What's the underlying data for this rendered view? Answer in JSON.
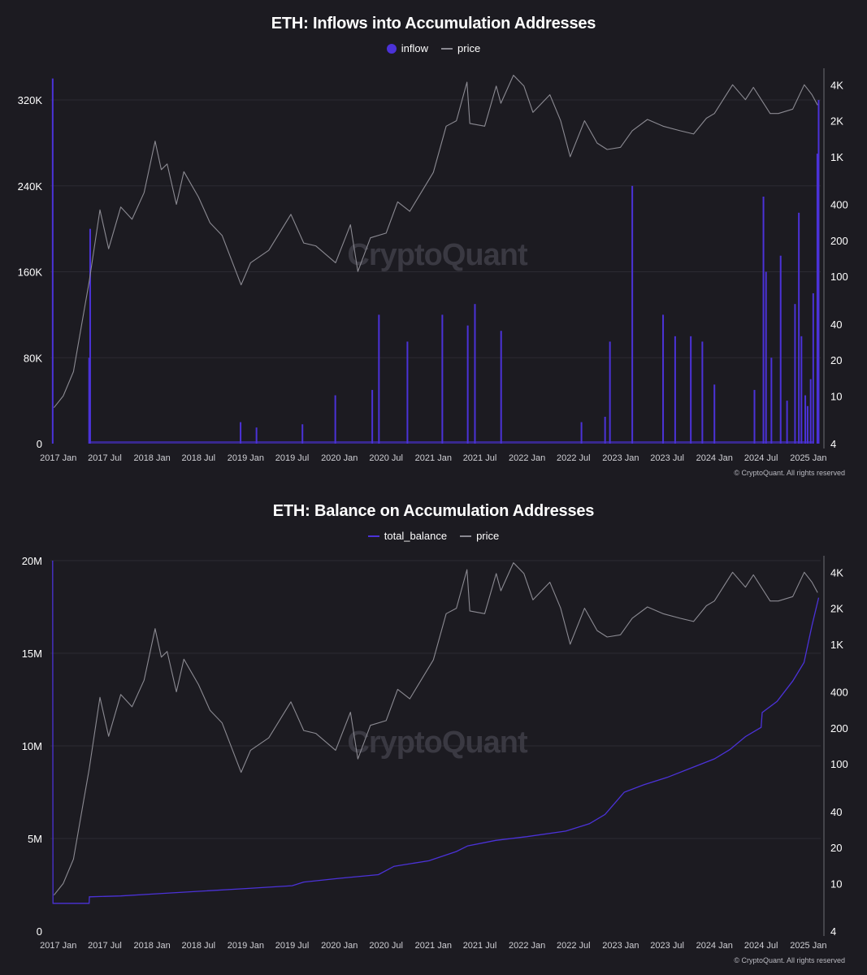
{
  "colors": {
    "inflow": "#4b32d8",
    "balance": "#4b32d8",
    "price": "#8b8a92",
    "grid": "#2c2b33"
  },
  "watermark": "CryptoQuant",
  "copyright": "© CryptoQuant. All rights reserved",
  "chart_data": [
    {
      "type": "bar",
      "title": "ETH: Inflows into Accumulation Addresses",
      "legend": [
        "inflow",
        "price"
      ],
      "x_ticks": [
        "2017 Jan",
        "2017 Jul",
        "2018 Jan",
        "2018 Jul",
        "2019 Jan",
        "2019 Jul",
        "2020 Jan",
        "2020 Jul",
        "2021 Jan",
        "2021 Jul",
        "2022 Jan",
        "2022 Jul",
        "2023 Jan",
        "2023 Jul",
        "2024 Jan",
        "2024 Jul",
        "2025 Jan"
      ],
      "y_left_ticks": [
        "0",
        "80K",
        "160K",
        "240K",
        "320K"
      ],
      "y_left_range": [
        0,
        345000
      ],
      "y_right_ticks": [
        "4",
        "10",
        "20",
        "40",
        "100",
        "200",
        "400",
        "1K",
        "2K",
        "4K"
      ],
      "y_right_scale": "log",
      "y_right_range": [
        4,
        5000
      ],
      "series": [
        {
          "name": "inflow",
          "x": [
            "2016-12-10",
            "2017-05-01",
            "2017-05-05",
            "2018-12-12",
            "2019-02-12",
            "2019-08-10",
            "2019-12-16",
            "2020-05-08",
            "2020-06-03",
            "2020-09-22",
            "2021-02-05",
            "2021-05-15",
            "2021-06-12",
            "2021-09-22",
            "2022-08-01",
            "2022-11-01",
            "2022-11-20",
            "2023-02-15",
            "2023-06-15",
            "2023-08-01",
            "2023-10-01",
            "2023-11-15",
            "2024-01-01",
            "2024-06-05",
            "2024-07-10",
            "2024-07-20",
            "2024-08-10",
            "2024-09-15",
            "2024-10-10",
            "2024-11-10",
            "2024-11-25",
            "2024-12-05",
            "2024-12-20",
            "2024-12-29",
            "2025-01-10",
            "2025-01-20",
            "2025-02-05",
            "2025-02-10"
          ],
          "values": [
            340000,
            80000,
            200000,
            20000,
            15000,
            18000,
            45000,
            50000,
            120000,
            95000,
            120000,
            110000,
            130000,
            105000,
            20000,
            25000,
            95000,
            240000,
            120000,
            100000,
            100000,
            95000,
            55000,
            50000,
            230000,
            160000,
            80000,
            175000,
            40000,
            130000,
            215000,
            100000,
            45000,
            35000,
            60000,
            140000,
            270000,
            320000
          ]
        },
        {
          "name": "price",
          "x": [
            "2016-12-15",
            "2017-01-20",
            "2017-03-01",
            "2017-04-10",
            "2017-05-01",
            "2017-06-12",
            "2017-07-16",
            "2017-09-01",
            "2017-10-15",
            "2017-12-01",
            "2018-01-13",
            "2018-02-06",
            "2018-03-01",
            "2018-04-06",
            "2018-05-05",
            "2018-07-01",
            "2018-08-15",
            "2018-10-01",
            "2018-12-14",
            "2019-01-20",
            "2019-04-01",
            "2019-06-26",
            "2019-08-15",
            "2019-10-01",
            "2019-12-17",
            "2020-02-13",
            "2020-03-13",
            "2020-05-01",
            "2020-07-01",
            "2020-08-15",
            "2020-10-01",
            "2021-01-01",
            "2021-02-20",
            "2021-04-01",
            "2021-05-12",
            "2021-05-23",
            "2021-07-20",
            "2021-09-03",
            "2021-09-21",
            "2021-11-09",
            "2021-12-20",
            "2022-01-24",
            "2022-03-31",
            "2022-05-12",
            "2022-06-18",
            "2022-08-13",
            "2022-10-01",
            "2022-11-09",
            "2022-12-31",
            "2023-02-15",
            "2023-04-15",
            "2023-06-15",
            "2023-08-20",
            "2023-10-12",
            "2023-12-01",
            "2024-01-01",
            "2024-03-12",
            "2024-05-01",
            "2024-06-01",
            "2024-08-05",
            "2024-09-06",
            "2024-11-01",
            "2024-12-16",
            "2025-01-15",
            "2025-02-06"
          ],
          "values": [
            8,
            10,
            16,
            50,
            90,
            360,
            170,
            380,
            300,
            500,
            1350,
            780,
            870,
            400,
            750,
            460,
            280,
            220,
            85,
            130,
            165,
            330,
            190,
            180,
            130,
            270,
            110,
            210,
            230,
            420,
            350,
            740,
            1800,
            2000,
            4200,
            1900,
            1800,
            3900,
            2800,
            4800,
            3900,
            2350,
            3300,
            2000,
            1000,
            2000,
            1300,
            1150,
            1200,
            1650,
            2050,
            1800,
            1650,
            1550,
            2100,
            2300,
            4000,
            3000,
            3800,
            2300,
            2300,
            2500,
            4000,
            3300,
            2700
          ]
        }
      ]
    },
    {
      "type": "line",
      "title": "ETH: Balance on Accumulation Addresses",
      "legend": [
        "total_balance",
        "price"
      ],
      "x_ticks": [
        "2017 Jan",
        "2017 Jul",
        "2018 Jan",
        "2018 Jul",
        "2019 Jan",
        "2019 Jul",
        "2020 Jan",
        "2020 Jul",
        "2021 Jan",
        "2021 Jul",
        "2022 Jan",
        "2022 Jul",
        "2023 Jan",
        "2023 Jul",
        "2024 Jan",
        "2024 Jul",
        "2025 Jan"
      ],
      "y_left_ticks": [
        "0",
        "5M",
        "10M",
        "15M",
        "20M"
      ],
      "y_left_range": [
        0,
        20000000
      ],
      "y_right_ticks": [
        "4",
        "10",
        "20",
        "40",
        "100",
        "200",
        "400",
        "1K",
        "2K",
        "4K"
      ],
      "y_right_scale": "log",
      "y_right_range": [
        4,
        5000
      ],
      "series": [
        {
          "name": "total_balance",
          "x": [
            "2016-12-10",
            "2016-12-11",
            "2017-01-01",
            "2017-05-01",
            "2017-05-02",
            "2017-09-01",
            "2018-01-01",
            "2018-07-01",
            "2019-01-01",
            "2019-07-01",
            "2019-08-15",
            "2020-01-01",
            "2020-06-01",
            "2020-08-01",
            "2020-12-15",
            "2021-04-01",
            "2021-05-15",
            "2021-09-01",
            "2022-01-01",
            "2022-06-01",
            "2022-09-01",
            "2022-11-01",
            "2023-01-15",
            "2023-04-01",
            "2023-07-01",
            "2023-10-01",
            "2024-01-01",
            "2024-03-01",
            "2024-05-01",
            "2024-07-01",
            "2024-07-05",
            "2024-09-01",
            "2024-11-01",
            "2024-12-15",
            "2025-01-15",
            "2025-02-10"
          ],
          "values": [
            20000000,
            1500000,
            1500000,
            1500000,
            1850000,
            1900000,
            2000000,
            2150000,
            2300000,
            2450000,
            2650000,
            2850000,
            3050000,
            3500000,
            3800000,
            4300000,
            4600000,
            4900000,
            5100000,
            5400000,
            5800000,
            6300000,
            7500000,
            7900000,
            8300000,
            8800000,
            9300000,
            9800000,
            10500000,
            11000000,
            11800000,
            12400000,
            13500000,
            14500000,
            16500000,
            18000000
          ]
        },
        {
          "name": "price",
          "x": [
            "2016-12-15",
            "2017-01-20",
            "2017-03-01",
            "2017-04-10",
            "2017-05-01",
            "2017-06-12",
            "2017-07-16",
            "2017-09-01",
            "2017-10-15",
            "2017-12-01",
            "2018-01-13",
            "2018-02-06",
            "2018-03-01",
            "2018-04-06",
            "2018-05-05",
            "2018-07-01",
            "2018-08-15",
            "2018-10-01",
            "2018-12-14",
            "2019-01-20",
            "2019-04-01",
            "2019-06-26",
            "2019-08-15",
            "2019-10-01",
            "2019-12-17",
            "2020-02-13",
            "2020-03-13",
            "2020-05-01",
            "2020-07-01",
            "2020-08-15",
            "2020-10-01",
            "2021-01-01",
            "2021-02-20",
            "2021-04-01",
            "2021-05-12",
            "2021-05-23",
            "2021-07-20",
            "2021-09-03",
            "2021-09-21",
            "2021-11-09",
            "2021-12-20",
            "2022-01-24",
            "2022-03-31",
            "2022-05-12",
            "2022-06-18",
            "2022-08-13",
            "2022-10-01",
            "2022-11-09",
            "2022-12-31",
            "2023-02-15",
            "2023-04-15",
            "2023-06-15",
            "2023-08-20",
            "2023-10-12",
            "2023-12-01",
            "2024-01-01",
            "2024-03-12",
            "2024-05-01",
            "2024-06-01",
            "2024-08-05",
            "2024-09-06",
            "2024-11-01",
            "2024-12-16",
            "2025-01-15",
            "2025-02-06"
          ],
          "values": [
            8,
            10,
            16,
            50,
            90,
            360,
            170,
            380,
            300,
            500,
            1350,
            780,
            870,
            400,
            750,
            460,
            280,
            220,
            85,
            130,
            165,
            330,
            190,
            180,
            130,
            270,
            110,
            210,
            230,
            420,
            350,
            740,
            1800,
            2000,
            4200,
            1900,
            1800,
            3900,
            2800,
            4800,
            3900,
            2350,
            3300,
            2000,
            1000,
            2000,
            1300,
            1150,
            1200,
            1650,
            2050,
            1800,
            1650,
            1550,
            2100,
            2300,
            4000,
            3000,
            3800,
            2300,
            2300,
            2500,
            4000,
            3300,
            2700
          ]
        }
      ]
    }
  ]
}
